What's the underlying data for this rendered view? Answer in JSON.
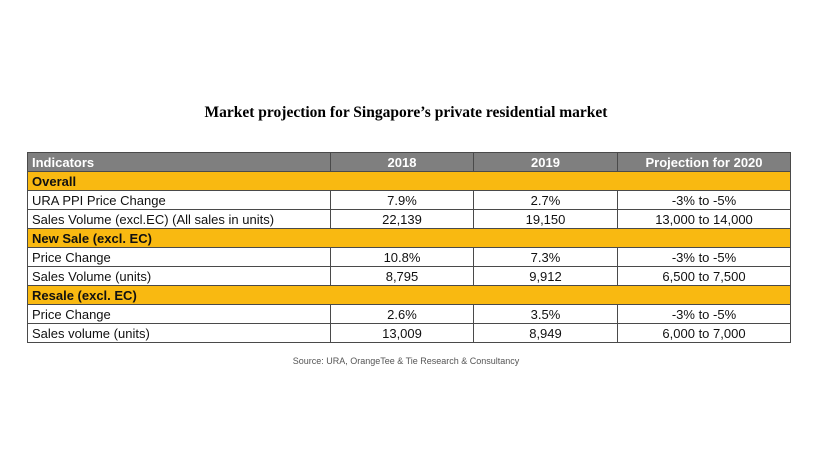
{
  "title": "Market projection for Singapore’s private residential market",
  "table": {
    "headers": [
      "Indicators",
      "2018",
      "2019",
      "Projection for 2020"
    ],
    "sections": [
      {
        "label": "Overall",
        "rows": [
          [
            "URA PPI Price Change",
            "7.9%",
            "2.7%",
            "-3% to -5%"
          ],
          [
            "Sales Volume (excl.EC) (All sales in units)",
            "22,139",
            "19,150",
            "13,000 to 14,000"
          ]
        ]
      },
      {
        "label": "New Sale (excl. EC)",
        "rows": [
          [
            "Price Change",
            "10.8%",
            "7.3%",
            "-3% to -5%"
          ],
          [
            "Sales Volume (units)",
            "8,795",
            "9,912",
            "6,500 to 7,500"
          ]
        ]
      },
      {
        "label": "Resale (excl. EC)",
        "rows": [
          [
            "Price Change",
            "2.6%",
            "3.5%",
            "-3% to -5%"
          ],
          [
            "Sales volume (units)",
            "13,009",
            "8,949",
            "6,000 to 7,000"
          ]
        ]
      }
    ]
  },
  "source": "Source: URA, OrangeTee & Tie Research & Consultancy",
  "colors": {
    "header_bg": "#7f7f7f",
    "section_bg": "#f9b911",
    "border": "#4a4a4a"
  }
}
